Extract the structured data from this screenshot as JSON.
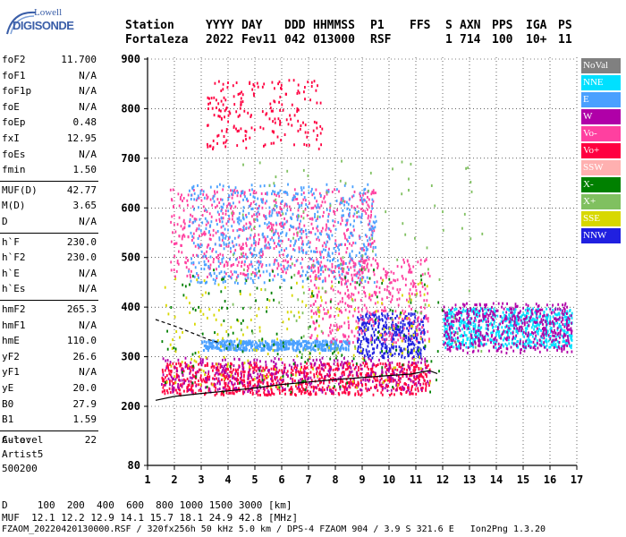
{
  "logo": {
    "line1": "Lowell",
    "line2": "DIGISONDE"
  },
  "header": {
    "row1": [
      {
        "t": "Station",
        "x": 0
      },
      {
        "t": "YYYY",
        "x": 90
      },
      {
        "t": "DAY",
        "x": 130
      },
      {
        "t": "DDD",
        "x": 178
      },
      {
        "t": "HHMMSS",
        "x": 210
      },
      {
        "t": "P1",
        "x": 274
      },
      {
        "t": "FFS",
        "x": 318
      },
      {
        "t": "S",
        "x": 358
      },
      {
        "t": "AXN",
        "x": 374
      },
      {
        "t": "PPS",
        "x": 410
      },
      {
        "t": "IGA",
        "x": 448
      },
      {
        "t": "PS",
        "x": 484
      }
    ],
    "row2": [
      {
        "t": "Fortaleza",
        "x": 0
      },
      {
        "t": "2022",
        "x": 90
      },
      {
        "t": "Fev11",
        "x": 130
      },
      {
        "t": "042",
        "x": 178
      },
      {
        "t": "013000",
        "x": 210
      },
      {
        "t": "RSF",
        "x": 274
      },
      {
        "t": "1",
        "x": 358
      },
      {
        "t": "714",
        "x": 374
      },
      {
        "t": "100",
        "x": 410
      },
      {
        "t": "10+",
        "x": 448
      },
      {
        "t": "11",
        "x": 484
      }
    ]
  },
  "params": [
    {
      "n": "foF2",
      "v": "11.700"
    },
    {
      "n": "foF1",
      "v": "N/A"
    },
    {
      "n": "foF1p",
      "v": "N/A"
    },
    {
      "n": "foE",
      "v": "N/A"
    },
    {
      "n": "foEp",
      "v": "0.48"
    },
    {
      "n": "fxI",
      "v": "12.95"
    },
    {
      "n": "foEs",
      "v": "N/A"
    },
    {
      "n": "fmin",
      "v": "1.50"
    },
    {
      "n": "MUF(D)",
      "v": "42.77"
    },
    {
      "n": "M(D)",
      "v": "3.65"
    },
    {
      "n": "D",
      "v": "N/A"
    },
    {
      "n": "h`F",
      "v": "230.0"
    },
    {
      "n": "h`F2",
      "v": "230.0"
    },
    {
      "n": "h`E",
      "v": "N/A"
    },
    {
      "n": "h`Es",
      "v": "N/A"
    },
    {
      "n": "hmF2",
      "v": "265.3"
    },
    {
      "n": "hmF1",
      "v": "N/A"
    },
    {
      "n": "hmE",
      "v": "110.0"
    },
    {
      "n": "yF2",
      "v": "26.6"
    },
    {
      "n": "yF1",
      "v": "N/A"
    },
    {
      "n": "yE",
      "v": "20.0"
    },
    {
      "n": "B0",
      "v": "27.9"
    },
    {
      "n": "B1",
      "v": "1.59"
    },
    {
      "n": "C-level",
      "v": "22"
    }
  ],
  "auto": {
    "line1": "Auto:",
    "line2": "Artist5",
    "line3": "500200"
  },
  "legend": [
    {
      "label": "NoVal",
      "color": "#808080",
      "text": "#ffffff"
    },
    {
      "label": "NNE",
      "color": "#00e0ff",
      "text": "#ffffff"
    },
    {
      "label": "E",
      "color": "#4aa0ff",
      "text": "#ffffff"
    },
    {
      "label": "W",
      "color": "#b000a8",
      "text": "#ffffff"
    },
    {
      "label": "Vo-",
      "color": "#ff40a0",
      "text": "#ffffff"
    },
    {
      "label": "Vo+",
      "color": "#ff0040",
      "text": "#ffffff"
    },
    {
      "label": "SSW",
      "color": "#ffb0b0",
      "text": "#ffffff"
    },
    {
      "label": "X-",
      "color": "#008000",
      "text": "#ffffff"
    },
    {
      "label": "X+",
      "color": "#80c060",
      "text": "#ffffff"
    },
    {
      "label": "SSE",
      "color": "#d8d800",
      "text": "#ffffff"
    },
    {
      "label": "NNW",
      "color": "#2020e0",
      "text": "#ffffff"
    }
  ],
  "chart_data": {
    "type": "scatter",
    "xlim": [
      1,
      17
    ],
    "ylim": [
      80,
      900
    ],
    "x_ticks": [
      "1",
      "2",
      "3",
      "4",
      "5",
      "6",
      "7",
      "8",
      "9",
      "10",
      "11",
      "12",
      "13",
      "14",
      "15",
      "16",
      "17"
    ],
    "y_ticks": [
      "80",
      "200",
      "300",
      "400",
      "500",
      "600",
      "700",
      "800",
      "900"
    ],
    "y_tick_values": [
      80,
      200,
      300,
      400,
      500,
      600,
      700,
      800,
      900
    ],
    "grid": true,
    "profile_curve": [
      [
        1.3,
        212
      ],
      [
        2,
        220
      ],
      [
        3,
        226
      ],
      [
        4,
        231
      ],
      [
        5,
        237
      ],
      [
        6,
        244
      ],
      [
        7,
        249
      ],
      [
        8,
        254
      ],
      [
        9,
        258
      ],
      [
        10,
        262
      ],
      [
        10.8,
        265
      ],
      [
        11.5,
        272
      ],
      [
        11.8,
        266
      ]
    ],
    "dashed_curve": [
      [
        1.3,
        375
      ],
      [
        2,
        362
      ],
      [
        2.8,
        345
      ],
      [
        3.3,
        334
      ],
      [
        3.7,
        328
      ]
    ],
    "clusters": [
      {
        "color": "#ff0040",
        "x": [
          1.5,
          11.5
        ],
        "y": [
          225,
          290
        ],
        "n": 900
      },
      {
        "color": "#b000a8",
        "x": [
          1.5,
          11.5
        ],
        "y": [
          230,
          300
        ],
        "n": 400
      },
      {
        "color": "#4aa0ff",
        "x": [
          3.0,
          8.5
        ],
        "y": [
          315,
          335
        ],
        "n": 500
      },
      {
        "color": "#2020e0",
        "x": [
          8.8,
          11.3
        ],
        "y": [
          300,
          390
        ],
        "n": 350
      },
      {
        "color": "#ff40a0",
        "x": [
          1.8,
          9.5
        ],
        "y": [
          460,
          640
        ],
        "n": 700
      },
      {
        "color": "#4aa0ff",
        "x": [
          2.5,
          9.5
        ],
        "y": [
          450,
          650
        ],
        "n": 600
      },
      {
        "color": "#ff0040",
        "x": [
          3.2,
          7.5
        ],
        "y": [
          720,
          860
        ],
        "n": 200
      },
      {
        "color": "#00e0ff",
        "x": [
          12.0,
          16.8
        ],
        "y": [
          320,
          400
        ],
        "n": 700
      },
      {
        "color": "#b000a8",
        "x": [
          12.0,
          16.8
        ],
        "y": [
          310,
          410
        ],
        "n": 500
      },
      {
        "color": "#ff40a0",
        "x": [
          7.0,
          11.5
        ],
        "y": [
          330,
          500
        ],
        "n": 400
      },
      {
        "color": "#d8d800",
        "x": [
          1.5,
          11.5
        ],
        "y": [
          240,
          460
        ],
        "n": 200
      },
      {
        "color": "#008000",
        "x": [
          1.5,
          12.0
        ],
        "y": [
          230,
          480
        ],
        "n": 150
      },
      {
        "color": "#80c060",
        "x": [
          4.0,
          13.5
        ],
        "y": [
          300,
          700
        ],
        "n": 120
      }
    ]
  },
  "footer": {
    "line1": "D     100  200  400  600  800 1000 1500 3000 [km]",
    "line2": "MUF  12.1 12.2 12.9 14.1 15.7 18.1 24.9 42.8 [MHz]",
    "line3": "FZAOM_20220420130000.RSF / 320fx256h 50 kHz 5.0 km / DPS-4 FZAOM 904 / 3.9 S 321.6 E   Ion2Png 1.3.20"
  }
}
